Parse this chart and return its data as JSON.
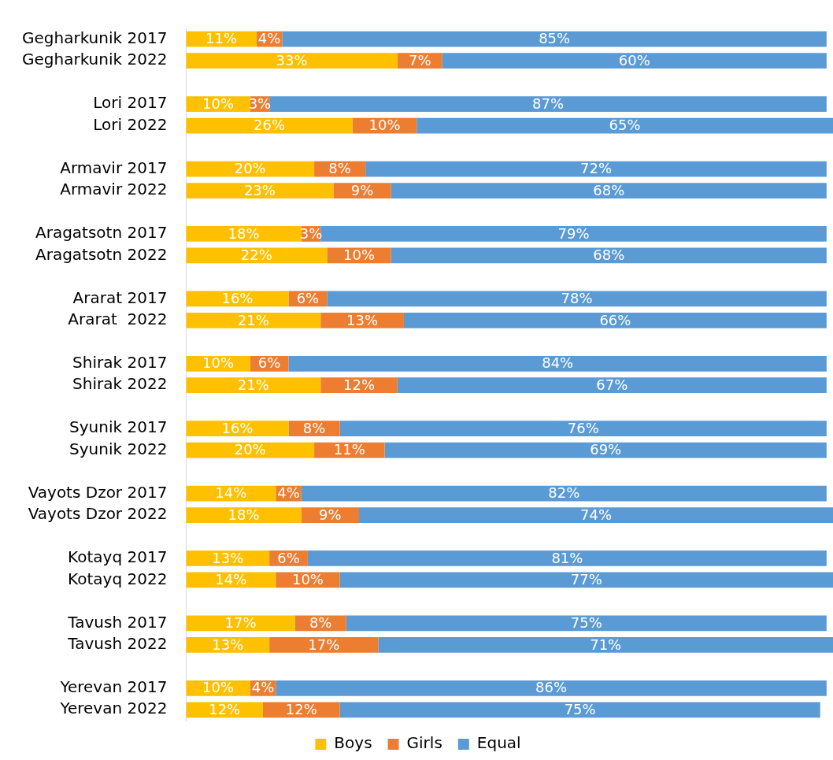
{
  "chart_data": {
    "type": "bar",
    "orientation": "horizontal",
    "stacked": true,
    "grid": false,
    "legend": "bottom",
    "categories": [
      "Gegharkunik 2017",
      "Gegharkunik 2022",
      null,
      "Lori 2017",
      "Lori 2022",
      null,
      "Armavir 2017",
      "Armavir 2022",
      null,
      "Aragatsotn 2017",
      "Aragatsotn 2022",
      null,
      "Ararat 2017",
      "Ararat  2022",
      null,
      "Shirak 2017",
      "Shirak 2022",
      null,
      "Syunik 2017",
      "Syunik 2022",
      null,
      "Vayots Dzor 2017",
      "Vayots Dzor 2022",
      null,
      "Kotayq 2017",
      "Kotayq 2022",
      null,
      "Tavush 2017",
      "Tavush 2022",
      null,
      "Yerevan 2017",
      "Yerevan 2022"
    ],
    "series": [
      {
        "name": "Boys",
        "color": "#ffc000",
        "values": [
          11,
          33,
          null,
          10,
          26,
          null,
          20,
          23,
          null,
          18,
          22,
          null,
          16,
          21,
          null,
          10,
          21,
          null,
          16,
          20,
          null,
          14,
          18,
          null,
          13,
          14,
          null,
          17,
          13,
          null,
          10,
          12
        ],
        "value_labels": [
          "11%",
          "33%",
          null,
          "10%",
          "26%",
          null,
          "20%",
          "23%",
          null,
          "18%",
          "22%",
          null,
          "16%",
          "21%",
          null,
          "10%",
          "21%",
          null,
          "16%",
          "20%",
          null,
          "14%",
          "18%",
          null,
          "13%",
          "14%",
          null,
          "17%",
          "13%",
          null,
          "10%",
          "12%"
        ]
      },
      {
        "name": "Girls",
        "color": "#ed7d31",
        "values": [
          4,
          7,
          null,
          3,
          10,
          null,
          8,
          9,
          null,
          3,
          10,
          null,
          6,
          13,
          null,
          6,
          12,
          null,
          8,
          11,
          null,
          4,
          9,
          null,
          6,
          10,
          null,
          8,
          17,
          null,
          4,
          12
        ],
        "value_labels": [
          "4%",
          "7%",
          null,
          "3%",
          "10%",
          null,
          "8%",
          "9%",
          null,
          "3%",
          "10%",
          null,
          "6%",
          "13%",
          null,
          "6%",
          "12%",
          null,
          "8%",
          "11%",
          null,
          "4%",
          "9%",
          null,
          "6%",
          "10%",
          null,
          "8%",
          "17%",
          null,
          "4%",
          "12%"
        ]
      },
      {
        "name": "Equal",
        "color": "#5b9bd5",
        "values": [
          85,
          60,
          null,
          87,
          65,
          null,
          72,
          68,
          null,
          79,
          68,
          null,
          78,
          66,
          null,
          84,
          67,
          null,
          76,
          69,
          null,
          82,
          74,
          null,
          81,
          77,
          null,
          75,
          71,
          null,
          86,
          75
        ],
        "value_labels": [
          "85%",
          "60%",
          null,
          "87%",
          "65%",
          null,
          "72%",
          "68%",
          null,
          "79%",
          "68%",
          null,
          "78%",
          "66%",
          null,
          "84%",
          "67%",
          null,
          "76%",
          "69%",
          null,
          "82%",
          "74%",
          null,
          "81%",
          "77%",
          null,
          "75%",
          "71%",
          null,
          "86%",
          "75%"
        ]
      }
    ]
  }
}
